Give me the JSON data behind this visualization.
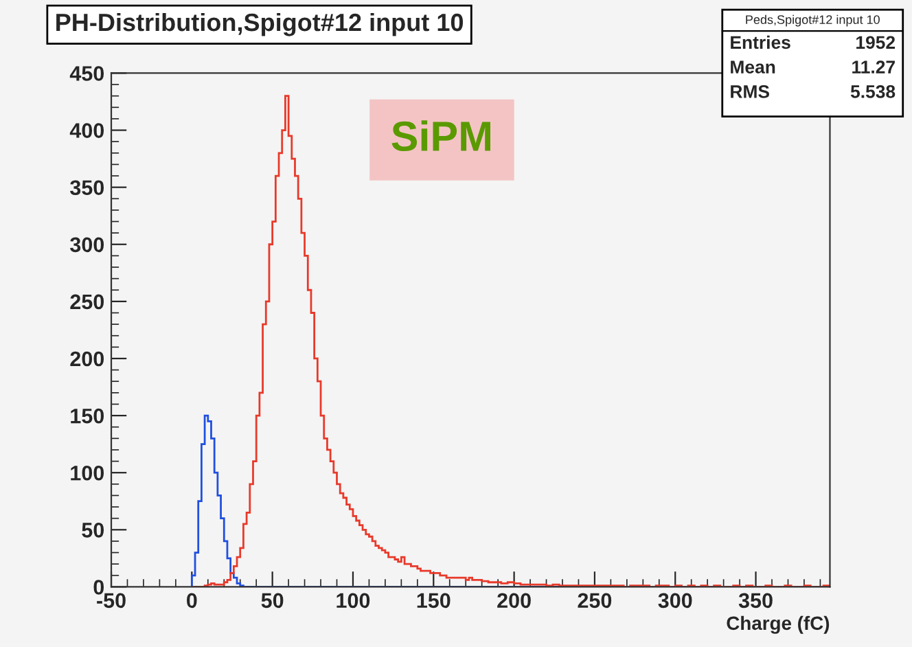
{
  "chart_data": {
    "type": "histogram",
    "title": "PH-Distribution,Spigot#12 input 10",
    "xlabel": "Charge (fC)",
    "bins": [
      0,
      2,
      4,
      6,
      8,
      10,
      12,
      14,
      16,
      18,
      20,
      22,
      24,
      26,
      28,
      30,
      32,
      34,
      36,
      38,
      40,
      42,
      44,
      46,
      48,
      50,
      52,
      54,
      56,
      58,
      60,
      62,
      64,
      66,
      68,
      70,
      72,
      74,
      76,
      78,
      80,
      82,
      84,
      86,
      88,
      90,
      92,
      94,
      96,
      98,
      100,
      102,
      104,
      106,
      108,
      110,
      112,
      114,
      116,
      118,
      120,
      122,
      124,
      126,
      128,
      130,
      132,
      134,
      136,
      138,
      140,
      142,
      144,
      146,
      148,
      150,
      152,
      154,
      156,
      158,
      160,
      162,
      164,
      166,
      168,
      170,
      172,
      174,
      176,
      178,
      180,
      182,
      184,
      186,
      188,
      190,
      192,
      194,
      196,
      198,
      200,
      202,
      204,
      206,
      208,
      210,
      212,
      214,
      216,
      218,
      220,
      222,
      224,
      226,
      228,
      230,
      232,
      234,
      236,
      238,
      240,
      242,
      244,
      246,
      248,
      250,
      252,
      254,
      256,
      258,
      260,
      262,
      264,
      266,
      268,
      270,
      272,
      274,
      276,
      278,
      280,
      282,
      284,
      286,
      288,
      290,
      292,
      294,
      296,
      298,
      300,
      302,
      304,
      306,
      308,
      310,
      312,
      314,
      316,
      318,
      320,
      322,
      324,
      326,
      328,
      330,
      332,
      334,
      336,
      338,
      340,
      342,
      344,
      346,
      348,
      350,
      352,
      354,
      356,
      358,
      360,
      362,
      364,
      366,
      368,
      370,
      372,
      374,
      376,
      378,
      380,
      382,
      384,
      386,
      388,
      390,
      392,
      394,
      396
    ],
    "series": [
      {
        "color": "#1f4fe0",
        "values": [
          10,
          30,
          75,
          125,
          150,
          145,
          130,
          100,
          80,
          60,
          40,
          25,
          12,
          8,
          3,
          1,
          0,
          0,
          0,
          0,
          0,
          0,
          0,
          0,
          0,
          0,
          0,
          0,
          0,
          0,
          0,
          0,
          0,
          0,
          0,
          0,
          0,
          0,
          0,
          0,
          0,
          0,
          0,
          0,
          0,
          0,
          0,
          0,
          0,
          0,
          0,
          0,
          0,
          0,
          0,
          0,
          0,
          0,
          0,
          0,
          0,
          0,
          0,
          0,
          0,
          0,
          0,
          0,
          0,
          0,
          0,
          0,
          0,
          0,
          0,
          0,
          0,
          0,
          0,
          0,
          0,
          0,
          0,
          0,
          0,
          0,
          0,
          0,
          0,
          0,
          0,
          0,
          0,
          0,
          0,
          0,
          0,
          0,
          0,
          0,
          0,
          0,
          0,
          0,
          0,
          0,
          0,
          0,
          0,
          0,
          0,
          0,
          0,
          0,
          0,
          0,
          0,
          0,
          0,
          0,
          0,
          0,
          0,
          0,
          0,
          0,
          0,
          0,
          0,
          0,
          0,
          0,
          0,
          0,
          0,
          0,
          0,
          0,
          0,
          0,
          0,
          0,
          0,
          0,
          0,
          0,
          0,
          0,
          0,
          0,
          0,
          0,
          0,
          0,
          0,
          0,
          0,
          0,
          0,
          0,
          0,
          0,
          0,
          0,
          0,
          0,
          0,
          0,
          0,
          0,
          0,
          0,
          0,
          0,
          0,
          0,
          0,
          0,
          0,
          0,
          0,
          0,
          0,
          0,
          0,
          0,
          0,
          0,
          0,
          0,
          0,
          0,
          0,
          0,
          0,
          0,
          0,
          0
        ]
      },
      {
        "color": "#e8392a",
        "values": [
          0,
          0,
          0,
          0,
          1,
          2,
          3,
          2,
          2,
          2,
          4,
          6,
          12,
          18,
          26,
          34,
          55,
          65,
          90,
          110,
          150,
          170,
          230,
          250,
          300,
          320,
          360,
          380,
          400,
          430,
          395,
          375,
          360,
          340,
          310,
          290,
          260,
          240,
          200,
          180,
          150,
          130,
          120,
          110,
          100,
          90,
          82,
          78,
          72,
          68,
          62,
          58,
          54,
          50,
          46,
          44,
          40,
          36,
          34,
          32,
          30,
          26,
          26,
          24,
          22,
          26,
          20,
          20,
          18,
          18,
          16,
          14,
          14,
          14,
          12,
          12,
          12,
          10,
          10,
          8,
          8,
          8,
          8,
          8,
          8,
          6,
          8,
          6,
          6,
          6,
          5,
          5,
          4,
          4,
          4,
          4,
          3,
          3,
          4,
          4,
          3,
          3,
          2,
          2,
          2,
          2,
          2,
          2,
          2,
          2,
          1,
          1,
          2,
          2,
          1,
          1,
          1,
          1,
          1,
          1,
          1,
          1,
          1,
          1,
          1,
          1,
          1,
          1,
          1,
          1,
          1,
          1,
          1,
          1,
          0,
          0,
          1,
          1,
          1,
          1,
          1,
          1,
          0,
          0,
          1,
          1,
          1,
          1,
          0,
          0,
          1,
          1,
          0,
          0,
          1,
          1,
          0,
          0,
          1,
          1,
          0,
          0,
          1,
          1,
          0,
          0,
          0,
          0,
          1,
          1,
          0,
          0,
          1,
          1,
          0,
          0,
          0,
          0,
          1,
          1,
          0,
          0,
          0,
          0,
          1,
          1,
          0,
          0,
          0,
          0,
          1,
          1,
          0,
          0,
          0,
          0,
          1,
          1
        ]
      }
    ],
    "xlim": [
      -50,
      396
    ],
    "ylim": [
      0,
      450
    ],
    "xticks": [
      -50,
      0,
      50,
      100,
      150,
      200,
      250,
      300,
      350
    ],
    "yticks": [
      0,
      50,
      100,
      150,
      200,
      250,
      300,
      350,
      400,
      450
    ],
    "annotations": [
      "SiPM",
      "Peds,Spigot#12 input 10",
      "Entries",
      "1952",
      "Mean",
      "11.27",
      "RMS",
      "5.538"
    ]
  }
}
